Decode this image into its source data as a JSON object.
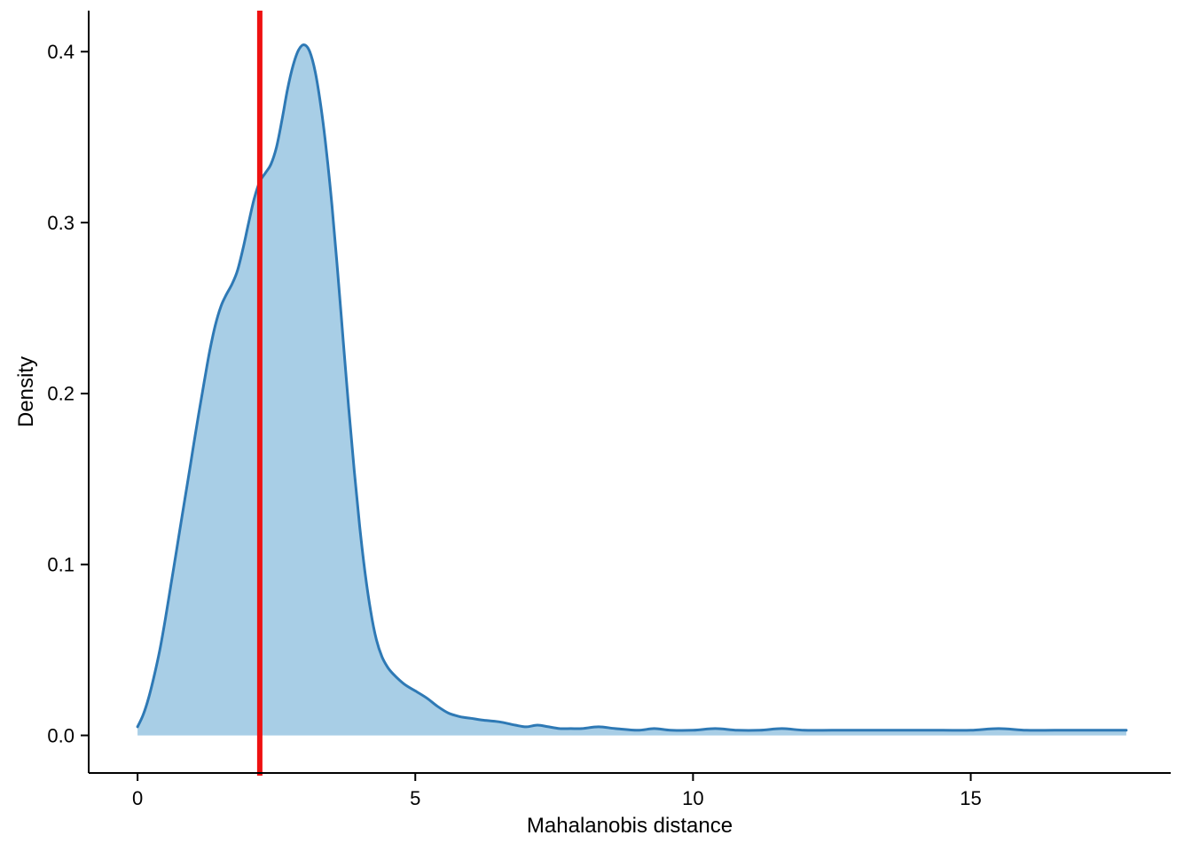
{
  "chart_data": {
    "type": "area",
    "title": "",
    "xlabel": "Mahalanobis distance",
    "ylabel": "Density",
    "xlim": [
      -0.88,
      18.6
    ],
    "ylim": [
      -0.022,
      0.424
    ],
    "x_ticks": [
      0,
      5,
      10,
      15
    ],
    "x_tick_labels": [
      "0",
      "5",
      "10",
      "15"
    ],
    "y_ticks": [
      0.0,
      0.1,
      0.2,
      0.3,
      0.4
    ],
    "y_tick_labels": [
      "0.0",
      "0.1",
      "0.2",
      "0.3",
      "0.4"
    ],
    "vline_x": 2.2,
    "grid": false,
    "legend": "none",
    "colors": {
      "fill": "#a8cee6",
      "stroke": "#2e79b5",
      "vline": "#ee1111",
      "axis": "#000000"
    },
    "series": [
      {
        "name": "density",
        "x": [
          0,
          0.1,
          0.2,
          0.3,
          0.4,
          0.5,
          0.6,
          0.7,
          0.8,
          0.9,
          1.0,
          1.1,
          1.2,
          1.3,
          1.4,
          1.5,
          1.6,
          1.7,
          1.8,
          1.9,
          2.0,
          2.1,
          2.2,
          2.3,
          2.4,
          2.5,
          2.6,
          2.7,
          2.8,
          2.9,
          3.0,
          3.1,
          3.2,
          3.3,
          3.4,
          3.5,
          3.6,
          3.7,
          3.8,
          3.9,
          4.0,
          4.1,
          4.2,
          4.3,
          4.4,
          4.5,
          4.6,
          4.8,
          5.0,
          5.2,
          5.4,
          5.6,
          5.8,
          6.0,
          6.2,
          6.5,
          6.8,
          7.0,
          7.2,
          7.4,
          7.6,
          7.8,
          8.0,
          8.3,
          8.6,
          9.0,
          9.3,
          9.6,
          10.0,
          10.4,
          10.8,
          11.2,
          11.6,
          12.0,
          12.5,
          13.0,
          13.5,
          14.0,
          14.5,
          15.0,
          15.5,
          16.0,
          16.5,
          17.0,
          17.5,
          17.8
        ],
        "y": [
          0.005,
          0.012,
          0.022,
          0.035,
          0.05,
          0.068,
          0.088,
          0.108,
          0.128,
          0.148,
          0.168,
          0.188,
          0.207,
          0.225,
          0.24,
          0.251,
          0.258,
          0.264,
          0.272,
          0.285,
          0.3,
          0.314,
          0.324,
          0.329,
          0.334,
          0.344,
          0.36,
          0.378,
          0.392,
          0.401,
          0.404,
          0.4,
          0.388,
          0.368,
          0.342,
          0.31,
          0.272,
          0.232,
          0.192,
          0.155,
          0.122,
          0.094,
          0.072,
          0.056,
          0.046,
          0.04,
          0.036,
          0.03,
          0.026,
          0.022,
          0.017,
          0.013,
          0.011,
          0.01,
          0.009,
          0.008,
          0.006,
          0.005,
          0.006,
          0.005,
          0.004,
          0.004,
          0.004,
          0.005,
          0.004,
          0.003,
          0.004,
          0.003,
          0.003,
          0.004,
          0.003,
          0.003,
          0.004,
          0.003,
          0.003,
          0.003,
          0.003,
          0.003,
          0.003,
          0.003,
          0.004,
          0.003,
          0.003,
          0.003,
          0.003,
          0.003
        ]
      }
    ]
  }
}
